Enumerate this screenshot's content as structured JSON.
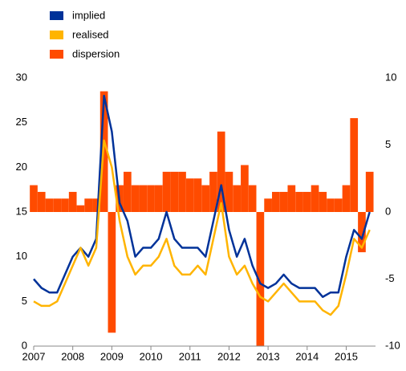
{
  "chart_data": {
    "type": "line",
    "x": [
      2007,
      2007.2,
      2007.4,
      2007.6,
      2007.8,
      2008,
      2008.2,
      2008.4,
      2008.6,
      2008.8,
      2009,
      2009.2,
      2009.4,
      2009.6,
      2009.8,
      2010,
      2010.2,
      2010.4,
      2010.6,
      2010.8,
      2011,
      2011.2,
      2011.4,
      2011.6,
      2011.8,
      2012,
      2012.2,
      2012.4,
      2012.6,
      2012.8,
      2013,
      2013.2,
      2013.4,
      2013.6,
      2013.8,
      2014,
      2014.2,
      2014.4,
      2014.6,
      2014.8,
      2015,
      2015.2,
      2015.4,
      2015.6
    ],
    "series": [
      {
        "name": "dispersion",
        "color": "#ff4b00",
        "axis": "y2",
        "type": "bar",
        "values": [
          2,
          1.5,
          1,
          1,
          1,
          1.5,
          0.5,
          1,
          1,
          9,
          -9,
          2,
          3,
          2,
          2,
          2,
          2,
          3,
          3,
          3,
          2.5,
          2.5,
          2,
          3,
          6,
          3,
          2,
          3.5,
          2,
          -10,
          1,
          1.5,
          1.5,
          2,
          1.5,
          1.5,
          2,
          1.5,
          1,
          1,
          2,
          7,
          -3,
          3
        ]
      },
      {
        "name": "implied",
        "color": "#003299",
        "type": "line",
        "values": [
          7.5,
          6.5,
          6,
          6,
          8,
          10,
          11,
          10,
          12,
          28,
          24,
          16,
          14,
          10,
          11,
          11,
          12,
          15,
          12,
          11,
          11,
          11,
          10,
          14,
          18,
          13,
          10,
          12,
          9,
          7,
          6.5,
          7,
          8,
          7,
          6.5,
          6.5,
          6.5,
          5.5,
          6,
          6,
          10,
          13,
          12,
          15
        ]
      },
      {
        "name": "realised",
        "color": "#ffb400",
        "type": "line",
        "values": [
          5,
          4.5,
          4.5,
          5,
          7,
          9,
          11,
          9,
          11,
          23,
          20,
          14,
          10,
          8,
          9,
          9,
          10,
          12,
          9,
          8,
          8,
          9,
          8,
          12,
          16,
          10,
          8,
          9,
          7,
          5.5,
          5,
          6,
          7,
          6,
          5,
          5,
          5,
          4,
          3.5,
          4.5,
          8,
          12,
          11,
          13
        ]
      }
    ],
    "legend_order": [
      1,
      2,
      0
    ],
    "xlim": [
      2007,
      2015.75
    ],
    "xticks": [
      2007,
      2008,
      2009,
      2010,
      2011,
      2012,
      2013,
      2014,
      2015
    ],
    "ylim": [
      0,
      30
    ],
    "yticks": [
      0,
      5,
      10,
      15,
      20,
      25,
      30
    ],
    "y2lim": [
      -10,
      10
    ],
    "y2ticks": [
      -10,
      -5,
      0,
      5,
      10
    ]
  }
}
